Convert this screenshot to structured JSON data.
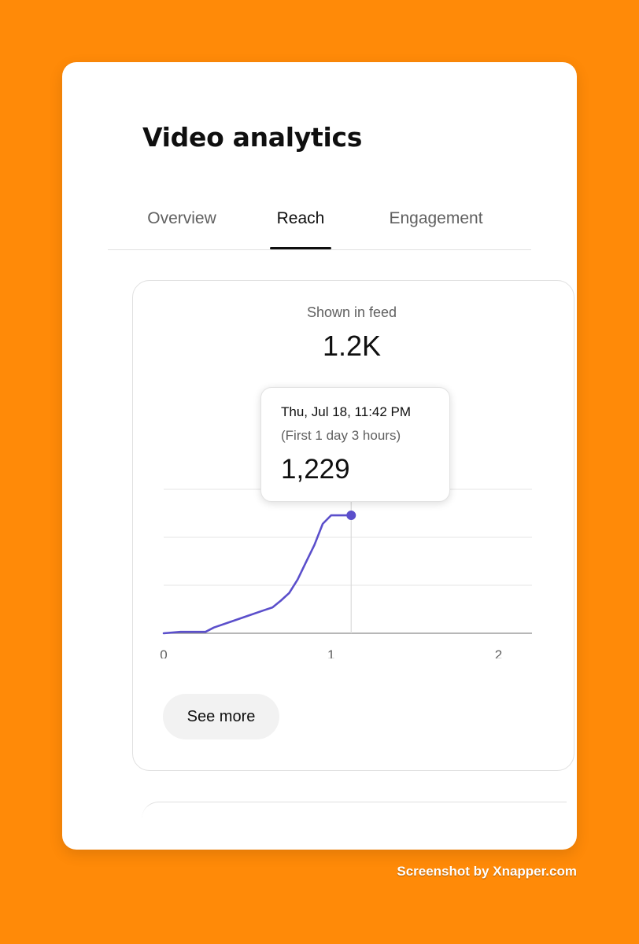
{
  "page": {
    "title": "Video analytics",
    "footer": "Screenshot by Xnapper.com"
  },
  "tabs": [
    {
      "label": "Overview",
      "active": false
    },
    {
      "label": "Reach",
      "active": true
    },
    {
      "label": "Engagement",
      "active": false
    }
  ],
  "metric": {
    "label": "Shown in feed",
    "value": "1.2K"
  },
  "tooltip": {
    "date": "Thu, Jul 18, 11:42 PM",
    "subtitle": "(First 1 day 3 hours)",
    "value": "1,229"
  },
  "chart_data": {
    "type": "line",
    "x_ticks": [
      "0",
      "1",
      "2"
    ],
    "xlim": [
      0,
      2.2
    ],
    "ylim": [
      0,
      1500
    ],
    "grid": true,
    "series": [
      {
        "color": "#5B4FCB",
        "points": [
          [
            0,
            0
          ],
          [
            0.1,
            15
          ],
          [
            0.25,
            15
          ],
          [
            0.3,
            60
          ],
          [
            0.4,
            120
          ],
          [
            0.5,
            180
          ],
          [
            0.6,
            240
          ],
          [
            0.65,
            270
          ],
          [
            0.7,
            340
          ],
          [
            0.75,
            420
          ],
          [
            0.8,
            560
          ],
          [
            0.85,
            740
          ],
          [
            0.9,
            920
          ],
          [
            0.95,
            1140
          ],
          [
            1.0,
            1229
          ],
          [
            1.12,
            1229
          ]
        ]
      }
    ],
    "highlight": {
      "x": 1.12,
      "y": 1229
    },
    "accent_color": "#5B4FCB"
  },
  "buttons": {
    "see_more": "See more"
  }
}
